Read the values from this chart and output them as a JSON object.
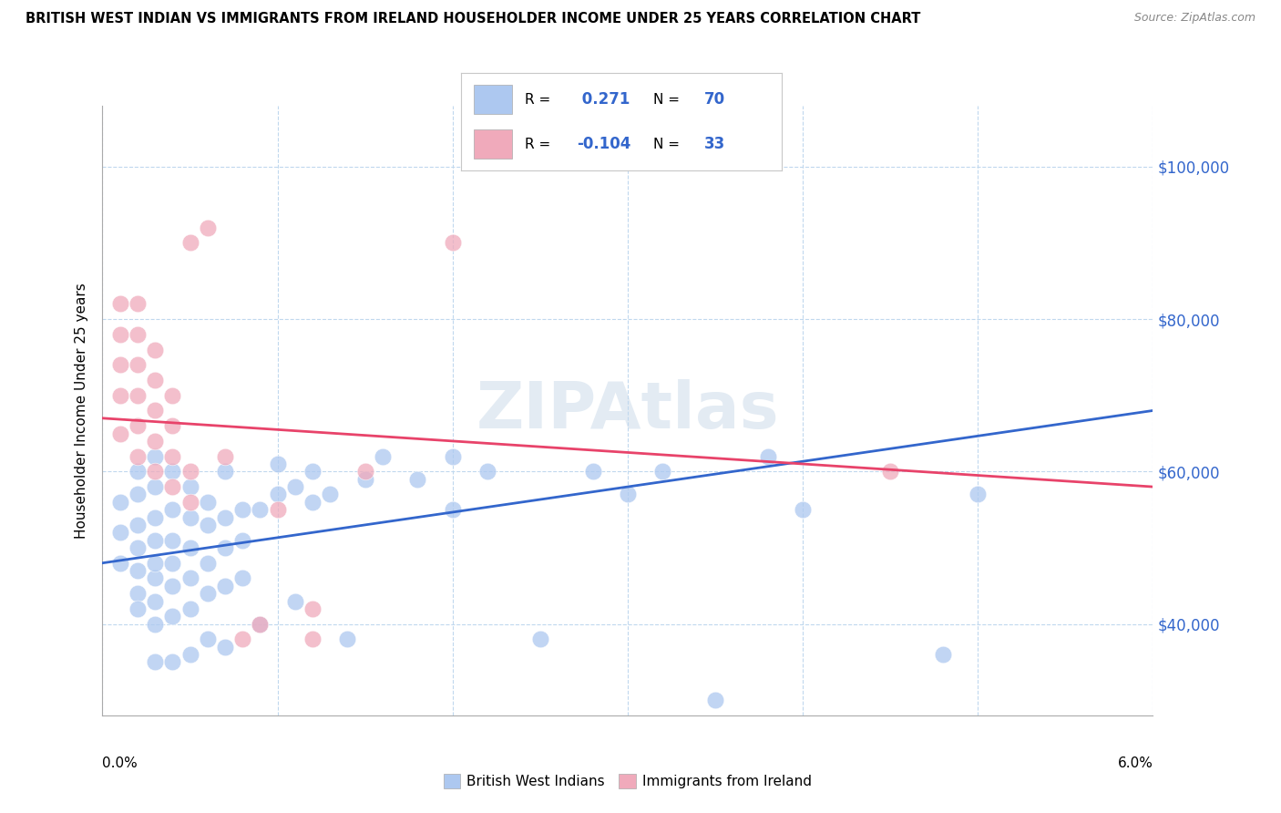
{
  "title": "BRITISH WEST INDIAN VS IMMIGRANTS FROM IRELAND HOUSEHOLDER INCOME UNDER 25 YEARS CORRELATION CHART",
  "source": "Source: ZipAtlas.com",
  "ylabel": "Householder Income Under 25 years",
  "xlim": [
    0.0,
    0.06
  ],
  "ylim": [
    28000,
    108000
  ],
  "yticks": [
    40000,
    60000,
    80000,
    100000
  ],
  "ytick_labels": [
    "$40,000",
    "$60,000",
    "$80,000",
    "$100,000"
  ],
  "xticks": [
    0.0,
    0.01,
    0.02,
    0.03,
    0.04,
    0.05,
    0.06
  ],
  "xtick_labels": [
    "",
    "",
    "",
    "",
    "",
    "",
    ""
  ],
  "R_blue": "0.271",
  "N_blue": "70",
  "R_pink": "-0.104",
  "N_pink": "33",
  "legend_label_blue": "British West Indians",
  "legend_label_pink": "Immigrants from Ireland",
  "blue_color": "#adc8f0",
  "pink_color": "#f0aabb",
  "line_blue_color": "#3366cc",
  "line_pink_color": "#e8436a",
  "blue_line_x": [
    0.0,
    0.06
  ],
  "blue_line_y": [
    48000,
    68000
  ],
  "pink_line_x": [
    0.0,
    0.06
  ],
  "pink_line_y": [
    67000,
    58000
  ],
  "blue_scatter": [
    [
      0.001,
      48000
    ],
    [
      0.001,
      52000
    ],
    [
      0.001,
      56000
    ],
    [
      0.002,
      44000
    ],
    [
      0.002,
      47000
    ],
    [
      0.002,
      50000
    ],
    [
      0.002,
      53000
    ],
    [
      0.002,
      57000
    ],
    [
      0.002,
      60000
    ],
    [
      0.003,
      43000
    ],
    [
      0.003,
      46000
    ],
    [
      0.003,
      48000
    ],
    [
      0.003,
      51000
    ],
    [
      0.003,
      54000
    ],
    [
      0.003,
      58000
    ],
    [
      0.003,
      62000
    ],
    [
      0.004,
      41000
    ],
    [
      0.004,
      45000
    ],
    [
      0.004,
      48000
    ],
    [
      0.004,
      51000
    ],
    [
      0.004,
      55000
    ],
    [
      0.004,
      60000
    ],
    [
      0.005,
      42000
    ],
    [
      0.005,
      46000
    ],
    [
      0.005,
      50000
    ],
    [
      0.005,
      54000
    ],
    [
      0.005,
      58000
    ],
    [
      0.006,
      44000
    ],
    [
      0.006,
      48000
    ],
    [
      0.006,
      53000
    ],
    [
      0.006,
      56000
    ],
    [
      0.007,
      45000
    ],
    [
      0.007,
      50000
    ],
    [
      0.007,
      54000
    ],
    [
      0.007,
      60000
    ],
    [
      0.008,
      46000
    ],
    [
      0.008,
      51000
    ],
    [
      0.008,
      55000
    ],
    [
      0.009,
      55000
    ],
    [
      0.01,
      57000
    ],
    [
      0.01,
      61000
    ],
    [
      0.011,
      58000
    ],
    [
      0.012,
      56000
    ],
    [
      0.012,
      60000
    ],
    [
      0.013,
      57000
    ],
    [
      0.015,
      59000
    ],
    [
      0.016,
      62000
    ],
    [
      0.018,
      59000
    ],
    [
      0.02,
      55000
    ],
    [
      0.02,
      62000
    ],
    [
      0.022,
      60000
    ],
    [
      0.025,
      38000
    ],
    [
      0.028,
      60000
    ],
    [
      0.03,
      57000
    ],
    [
      0.032,
      60000
    ],
    [
      0.035,
      30000
    ],
    [
      0.038,
      62000
    ],
    [
      0.04,
      55000
    ],
    [
      0.048,
      36000
    ],
    [
      0.05,
      57000
    ],
    [
      0.011,
      43000
    ],
    [
      0.014,
      38000
    ],
    [
      0.009,
      40000
    ],
    [
      0.007,
      37000
    ],
    [
      0.003,
      35000
    ],
    [
      0.003,
      40000
    ],
    [
      0.004,
      35000
    ],
    [
      0.005,
      36000
    ],
    [
      0.002,
      42000
    ],
    [
      0.006,
      38000
    ]
  ],
  "pink_scatter": [
    [
      0.001,
      65000
    ],
    [
      0.001,
      70000
    ],
    [
      0.001,
      74000
    ],
    [
      0.001,
      78000
    ],
    [
      0.001,
      82000
    ],
    [
      0.002,
      62000
    ],
    [
      0.002,
      66000
    ],
    [
      0.002,
      70000
    ],
    [
      0.002,
      74000
    ],
    [
      0.002,
      78000
    ],
    [
      0.002,
      82000
    ],
    [
      0.003,
      60000
    ],
    [
      0.003,
      64000
    ],
    [
      0.003,
      68000
    ],
    [
      0.003,
      72000
    ],
    [
      0.003,
      76000
    ],
    [
      0.004,
      58000
    ],
    [
      0.004,
      62000
    ],
    [
      0.004,
      66000
    ],
    [
      0.004,
      70000
    ],
    [
      0.005,
      56000
    ],
    [
      0.005,
      60000
    ],
    [
      0.006,
      92000
    ],
    [
      0.007,
      62000
    ],
    [
      0.008,
      38000
    ],
    [
      0.009,
      40000
    ],
    [
      0.01,
      55000
    ],
    [
      0.012,
      38000
    ],
    [
      0.012,
      42000
    ],
    [
      0.015,
      60000
    ],
    [
      0.02,
      90000
    ],
    [
      0.045,
      60000
    ],
    [
      0.005,
      90000
    ]
  ]
}
